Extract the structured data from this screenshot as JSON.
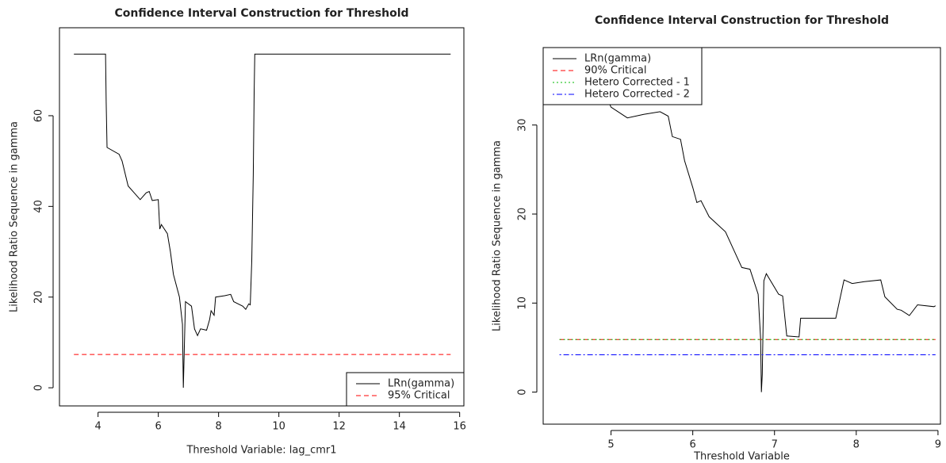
{
  "chart_data": [
    {
      "type": "line",
      "title": "Confidence Interval Construction for Threshold",
      "x_label": "Threshold Variable: lag_cmr1",
      "y_label": "Likelihood Ratio Sequence in gamma",
      "xlim": [
        2.72,
        16.14
      ],
      "ylim": [
        -4.0,
        79.4
      ],
      "xticks": [
        4,
        6,
        8,
        10,
        12,
        14,
        16
      ],
      "yticks": [
        0,
        20,
        40,
        60
      ],
      "legend": "bottomright",
      "series": [
        {
          "name": "LRn(gamma)",
          "color": "#000000",
          "linestyle": "solid",
          "x": [
            3.2,
            4.25,
            4.27,
            4.3,
            4.7,
            4.8,
            5.0,
            5.2,
            5.4,
            5.6,
            5.7,
            5.8,
            6.0,
            6.05,
            6.1,
            6.3,
            6.4,
            6.5,
            6.7,
            6.8,
            6.83,
            6.9,
            7.1,
            7.2,
            7.3,
            7.4,
            7.6,
            7.7,
            7.75,
            7.85,
            7.9,
            8.2,
            8.4,
            8.5,
            8.8,
            8.9,
            9.0,
            9.05,
            9.1,
            9.15,
            9.18,
            9.2,
            15.7
          ],
          "values": [
            73.6,
            73.6,
            63,
            53,
            51.5,
            50,
            44.5,
            43,
            41.5,
            43,
            43.3,
            41.3,
            41.5,
            35,
            36,
            34,
            30,
            25,
            20,
            14,
            0,
            19,
            18,
            13,
            11.5,
            13,
            12.7,
            15,
            17,
            16,
            20,
            20.3,
            20.6,
            19,
            18,
            17.3,
            18.5,
            18.3,
            28,
            47,
            65,
            73.6,
            73.6
          ]
        },
        {
          "name": "95% Critical",
          "color": "#ff0000",
          "linestyle": "dashed",
          "x": [
            3.2,
            15.7
          ],
          "values": [
            7.34,
            7.34
          ]
        }
      ]
    },
    {
      "type": "line",
      "title": "Confidence Interval Construction for Threshold",
      "x_label": "Threshold Variable",
      "y_label": "Likelihood Ratio Sequence in gamma",
      "xlim": [
        4.17,
        9.03
      ],
      "ylim": [
        -3.6,
        38.7
      ],
      "xticks": [
        5,
        6,
        7,
        8,
        9
      ],
      "yticks": [
        0,
        10,
        20,
        30
      ],
      "legend": "topleft",
      "series": [
        {
          "name": "LRn(gamma)",
          "color": "#000000",
          "linestyle": "solid",
          "x": [
            4.37,
            4.5,
            4.8,
            5.0,
            5.2,
            5.4,
            5.6,
            5.7,
            5.75,
            5.85,
            5.9,
            6.0,
            6.05,
            6.1,
            6.2,
            6.4,
            6.5,
            6.6,
            6.7,
            6.8,
            6.83,
            6.84,
            6.85,
            6.87,
            6.9,
            7.05,
            7.1,
            7.15,
            7.3,
            7.32,
            7.75,
            7.85,
            7.95,
            8.1,
            8.3,
            8.35,
            8.5,
            8.55,
            8.65,
            8.75,
            8.95,
            8.97
          ],
          "values": [
            37.3,
            36.5,
            36,
            32,
            30.8,
            31.2,
            31.5,
            31,
            28.7,
            28.4,
            26,
            23,
            21.3,
            21.5,
            19.7,
            18,
            16,
            14,
            13.8,
            11,
            6,
            0,
            2,
            12.5,
            13.3,
            11,
            10.8,
            6.3,
            6.2,
            8.3,
            8.3,
            12.6,
            12.2,
            12.4,
            12.6,
            10.7,
            9.3,
            9.2,
            8.6,
            9.8,
            9.6,
            9.7
          ]
        },
        {
          "name": "90% Critical",
          "color": "#ff0000",
          "linestyle": "dashed",
          "x": [
            4.37,
            8.97
          ],
          "values": [
            5.9,
            5.9
          ]
        },
        {
          "name": "Hetero Corrected - 1",
          "color": "#00bb00",
          "linestyle": "dotted",
          "x": [
            4.37,
            8.97
          ],
          "values": [
            5.9,
            5.9
          ]
        },
        {
          "name": "Hetero Corrected - 2",
          "color": "#0000ff",
          "linestyle": "dotdash",
          "x": [
            4.37,
            8.97
          ],
          "values": [
            4.19,
            4.19
          ]
        }
      ]
    }
  ]
}
